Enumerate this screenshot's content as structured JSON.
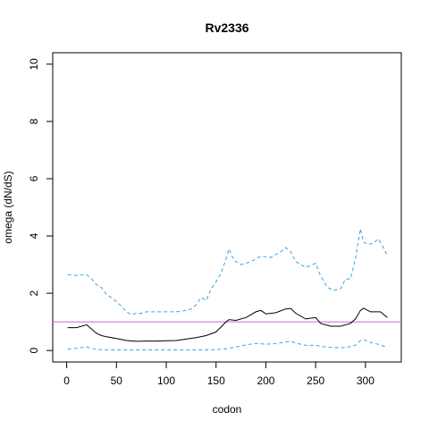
{
  "chart_data": {
    "type": "line",
    "title": "Rv2336",
    "xlabel": "codon",
    "ylabel": "omega (dN/dS)",
    "xlim": [
      -14,
      336
    ],
    "ylim": [
      -0.4,
      10.4
    ],
    "xticks": [
      0,
      50,
      100,
      150,
      200,
      250,
      300
    ],
    "yticks": [
      0,
      2,
      4,
      6,
      8,
      10
    ],
    "reference_line": {
      "y": 1,
      "color": "#cc66cc"
    },
    "series": [
      {
        "role": "upper",
        "color": "#3aa5e0",
        "dash": "dashed",
        "x": [
          1,
          10,
          20,
          25,
          30,
          35,
          40,
          45,
          50,
          55,
          60,
          65,
          70,
          75,
          80,
          90,
          100,
          110,
          120,
          125,
          130,
          135,
          140,
          145,
          150,
          155,
          160,
          163,
          168,
          175,
          185,
          195,
          205,
          215,
          220,
          225,
          230,
          240,
          250,
          255,
          262,
          268,
          275,
          280,
          285,
          290,
          295,
          298,
          302,
          308,
          313,
          318,
          322
        ],
        "y": [
          2.65,
          2.62,
          2.65,
          2.5,
          2.3,
          2.2,
          1.95,
          1.85,
          1.7,
          1.55,
          1.35,
          1.25,
          1.3,
          1.3,
          1.35,
          1.35,
          1.35,
          1.35,
          1.4,
          1.45,
          1.6,
          1.85,
          1.75,
          2.15,
          2.4,
          2.7,
          3.2,
          3.55,
          3.15,
          3.0,
          3.1,
          3.3,
          3.25,
          3.45,
          3.6,
          3.45,
          3.1,
          2.9,
          3.05,
          2.6,
          2.2,
          2.1,
          2.15,
          2.5,
          2.5,
          3.2,
          4.25,
          3.8,
          3.7,
          3.75,
          3.9,
          3.6,
          3.3
        ]
      },
      {
        "role": "estimate",
        "color": "#000000",
        "dash": "solid",
        "x": [
          1,
          10,
          20,
          25,
          30,
          35,
          40,
          50,
          60,
          70,
          80,
          90,
          100,
          110,
          120,
          130,
          140,
          150,
          155,
          160,
          163,
          170,
          180,
          190,
          195,
          200,
          210,
          220,
          225,
          230,
          240,
          250,
          255,
          265,
          275,
          285,
          290,
          295,
          298,
          305,
          315,
          322
        ],
        "y": [
          0.8,
          0.8,
          0.9,
          0.75,
          0.6,
          0.52,
          0.48,
          0.42,
          0.35,
          0.32,
          0.33,
          0.33,
          0.34,
          0.35,
          0.4,
          0.45,
          0.52,
          0.65,
          0.82,
          1.0,
          1.08,
          1.05,
          1.15,
          1.35,
          1.4,
          1.28,
          1.32,
          1.45,
          1.47,
          1.3,
          1.1,
          1.15,
          0.95,
          0.85,
          0.85,
          0.95,
          1.1,
          1.4,
          1.48,
          1.35,
          1.35,
          1.15
        ]
      },
      {
        "role": "lower",
        "color": "#3aa5e0",
        "dash": "dashed",
        "x": [
          1,
          10,
          20,
          25,
          30,
          40,
          50,
          60,
          70,
          80,
          100,
          120,
          140,
          150,
          160,
          170,
          180,
          190,
          200,
          210,
          220,
          225,
          230,
          240,
          250,
          260,
          270,
          280,
          290,
          295,
          298,
          305,
          315,
          322
        ],
        "y": [
          0.05,
          0.08,
          0.12,
          0.08,
          0.04,
          0.02,
          0.02,
          0.02,
          0.02,
          0.02,
          0.02,
          0.02,
          0.02,
          0.03,
          0.06,
          0.12,
          0.2,
          0.25,
          0.22,
          0.24,
          0.3,
          0.32,
          0.26,
          0.18,
          0.18,
          0.12,
          0.1,
          0.1,
          0.18,
          0.35,
          0.38,
          0.28,
          0.2,
          0.1
        ]
      }
    ]
  }
}
